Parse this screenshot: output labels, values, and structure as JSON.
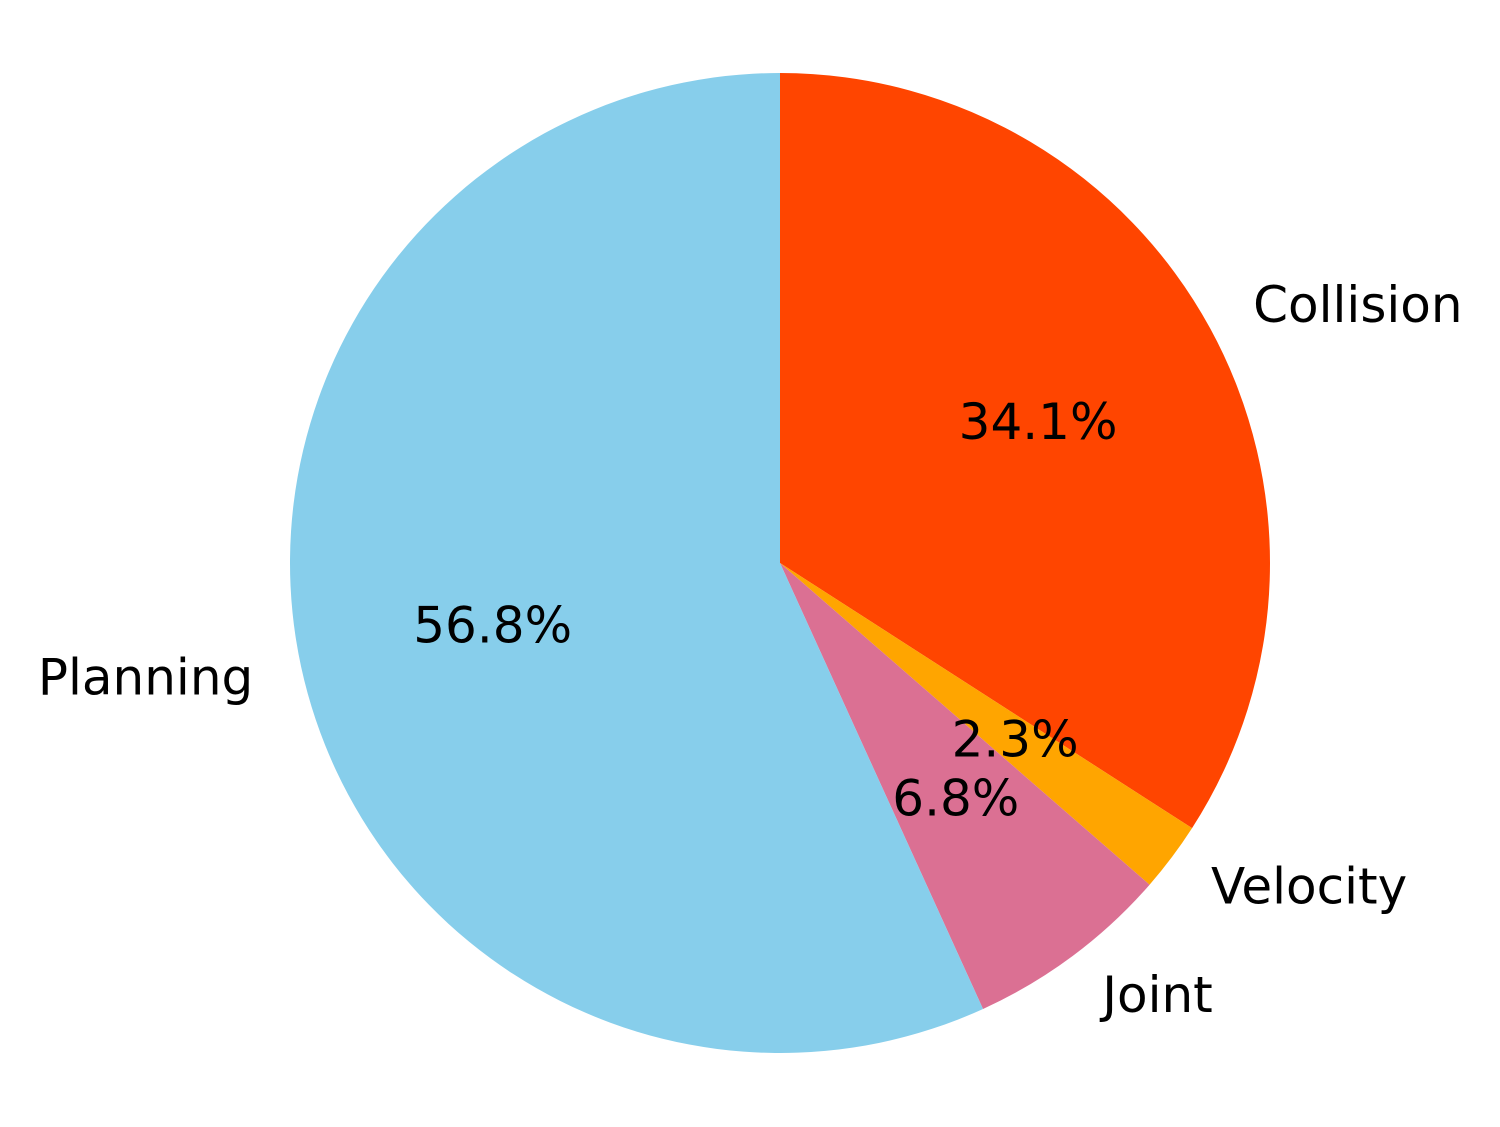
{
  "chart_data": {
    "type": "pie",
    "slices": [
      {
        "label": "Collision",
        "value": 34.1,
        "pct_label": "34.1%",
        "color": "#FF4500"
      },
      {
        "label": "Velocity",
        "value": 2.3,
        "pct_label": "2.3%",
        "color": "#FFA500"
      },
      {
        "label": "Joint",
        "value": 6.8,
        "pct_label": "6.8%",
        "color": "#DB7093"
      },
      {
        "label": "Planning",
        "value": 56.8,
        "pct_label": "56.8%",
        "color": "#87CEEB"
      }
    ],
    "start_angle": 90,
    "direction": "clockwise"
  }
}
